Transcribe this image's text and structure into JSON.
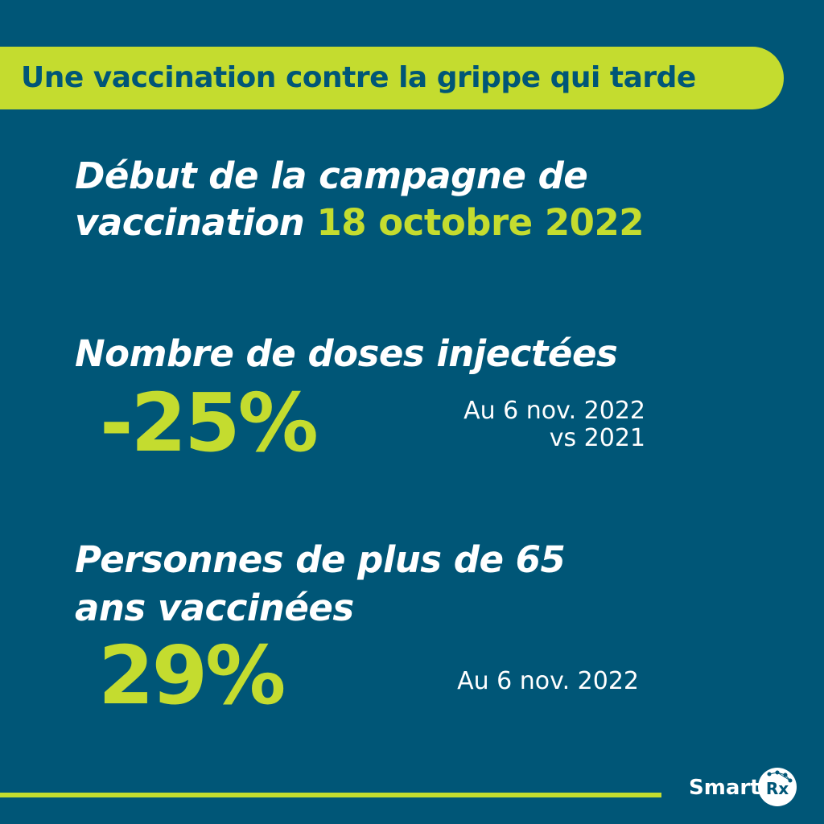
{
  "header": {
    "title": "Une vaccination contre la grippe qui tarde"
  },
  "campaign": {
    "line1": "Début de la campagne de",
    "line2_prefix": "vaccination",
    "date": "18 octobre 2022"
  },
  "doses": {
    "title": "Nombre de doses injectées",
    "value": "-25%",
    "note_line1": "Au 6 nov. 2022",
    "note_line2": "vs 2021"
  },
  "seniors": {
    "title_line1": "Personnes de plus de 65",
    "title_line2": "ans vaccinées",
    "value": "29%",
    "note": "Au 6 nov. 2022"
  },
  "logo": {
    "text": "Smart",
    "circle_text": "Rx"
  },
  "colors": {
    "background": "#005677",
    "accent": "#c4dc2f",
    "text": "#ffffff"
  }
}
